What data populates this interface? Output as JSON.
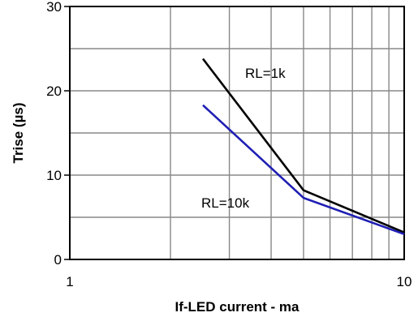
{
  "chart_data": {
    "type": "line",
    "xlabel": "If-LED current - ma",
    "ylabel": "Trise (µs)",
    "x_scale": "log",
    "xlim": [
      1,
      10
    ],
    "ylim": [
      0,
      30
    ],
    "x_ticks": [
      "1",
      "10"
    ],
    "y_ticks": [
      "0",
      "10",
      "20",
      "30"
    ],
    "grid": true,
    "series": [
      {
        "name": "RL=1k",
        "color": "#000000",
        "points": [
          [
            2.5,
            23.8
          ],
          [
            5.0,
            8.2
          ],
          [
            10.0,
            3.2
          ]
        ]
      },
      {
        "name": "RL=10k",
        "color": "#1f1fb4",
        "points": [
          [
            2.5,
            18.3
          ],
          [
            5.0,
            7.3
          ],
          [
            10.0,
            3.0
          ]
        ]
      }
    ]
  }
}
